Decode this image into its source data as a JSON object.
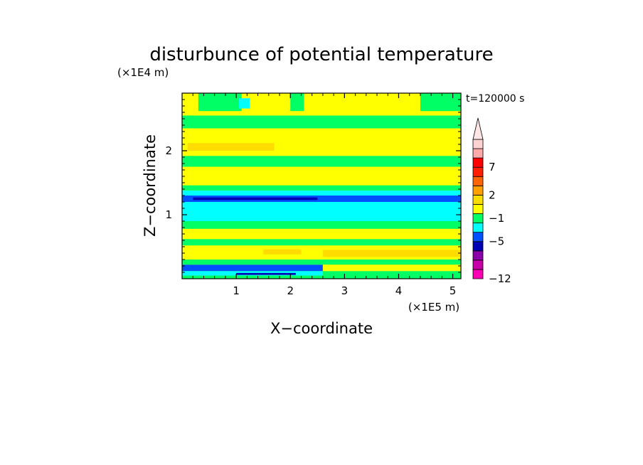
{
  "chart_data": {
    "type": "heatmap",
    "title": "disturbunce of potential temperature",
    "time_label": "t=120000 s",
    "xlabel": "X−coordinate",
    "ylabel": "Z−coordinate",
    "x_unit": "(×1E5 m)",
    "y_unit": "(×1E4 m)",
    "xlim": [
      0,
      5.15
    ],
    "ylim": [
      0,
      2.9
    ],
    "x_ticks": [
      {
        "value": 1,
        "label": "1"
      },
      {
        "value": 2,
        "label": "2"
      },
      {
        "value": 3,
        "label": "3"
      },
      {
        "value": 4,
        "label": "4"
      },
      {
        "value": 5,
        "label": "5"
      }
    ],
    "y_ticks": [
      {
        "value": 1,
        "label": "1"
      },
      {
        "value": 2,
        "label": "2"
      }
    ],
    "colorbar": {
      "colors": [
        "#ff00b4",
        "#c800aa",
        "#8c00aa",
        "#0000b4",
        "#0050ff",
        "#00ffff",
        "#00ff64",
        "#ffff00",
        "#ffdc00",
        "#ffa000",
        "#ff6400",
        "#ff1e00",
        "#ff0000",
        "#ffaaaa",
        "#ffd2d2"
      ],
      "extend_color": "#ffe6e6",
      "labels": [
        {
          "boundary": 0,
          "text": "−12"
        },
        {
          "boundary": 4,
          "text": "−5"
        },
        {
          "boundary": 6.5,
          "text": "−1"
        },
        {
          "boundary": 9,
          "text": "2"
        },
        {
          "boundary": 12,
          "text": "7"
        }
      ]
    },
    "bands": [
      {
        "z": [
          0.0,
          0.12
        ],
        "color": "#00ff64"
      },
      {
        "z": [
          0.05,
          0.12
        ],
        "x": [
          0.0,
          2.6
        ],
        "color": "#00ffff"
      },
      {
        "z": [
          0.06,
          0.09
        ],
        "x": [
          1.0,
          2.1
        ],
        "color": "#0000b4"
      },
      {
        "z": [
          0.12,
          0.22
        ],
        "x": [
          0.0,
          2.6
        ],
        "color": "#0050ff"
      },
      {
        "z": [
          0.12,
          0.22
        ],
        "x": [
          2.6,
          5.15
        ],
        "color": "#ffff00"
      },
      {
        "z": [
          0.22,
          0.3
        ],
        "color": "#00ff64"
      },
      {
        "z": [
          0.3,
          0.52
        ],
        "color": "#ffff00"
      },
      {
        "z": [
          0.34,
          0.45
        ],
        "x": [
          2.6,
          5.15
        ],
        "color": "#ffdc00"
      },
      {
        "z": [
          0.38,
          0.46
        ],
        "x": [
          1.5,
          2.2
        ],
        "color": "#ffdc00"
      },
      {
        "z": [
          0.52,
          0.62
        ],
        "color": "#00ff64"
      },
      {
        "z": [
          0.62,
          0.78
        ],
        "color": "#ffff00"
      },
      {
        "z": [
          0.78,
          0.9
        ],
        "color": "#00ff64"
      },
      {
        "z": [
          0.9,
          1.38
        ],
        "color": "#00ffff"
      },
      {
        "z": [
          1.2,
          1.3
        ],
        "color": "#0050ff"
      },
      {
        "z": [
          1.23,
          1.27
        ],
        "x": [
          0.2,
          2.5
        ],
        "color": "#0000b4"
      },
      {
        "z": [
          1.38,
          1.46
        ],
        "color": "#00ff64"
      },
      {
        "z": [
          1.46,
          1.75
        ],
        "color": "#ffff00"
      },
      {
        "z": [
          1.75,
          1.92
        ],
        "color": "#00ff64"
      },
      {
        "z": [
          1.92,
          2.35
        ],
        "color": "#ffff00"
      },
      {
        "z": [
          2.0,
          2.12
        ],
        "x": [
          0.1,
          1.7
        ],
        "color": "#ffdc00"
      },
      {
        "z": [
          2.35,
          2.55
        ],
        "color": "#00ff64"
      },
      {
        "z": [
          2.55,
          2.9
        ],
        "color": "#ffff00"
      },
      {
        "z": [
          2.62,
          2.9
        ],
        "x": [
          0.3,
          1.1
        ],
        "color": "#00ff64"
      },
      {
        "z": [
          2.62,
          2.9
        ],
        "x": [
          2.0,
          2.25
        ],
        "color": "#00ff64"
      },
      {
        "z": [
          2.62,
          2.9
        ],
        "x": [
          4.4,
          5.15
        ],
        "color": "#00ff64"
      },
      {
        "z": [
          2.66,
          2.82
        ],
        "x": [
          1.05,
          1.25
        ],
        "color": "#00ffff"
      }
    ]
  }
}
